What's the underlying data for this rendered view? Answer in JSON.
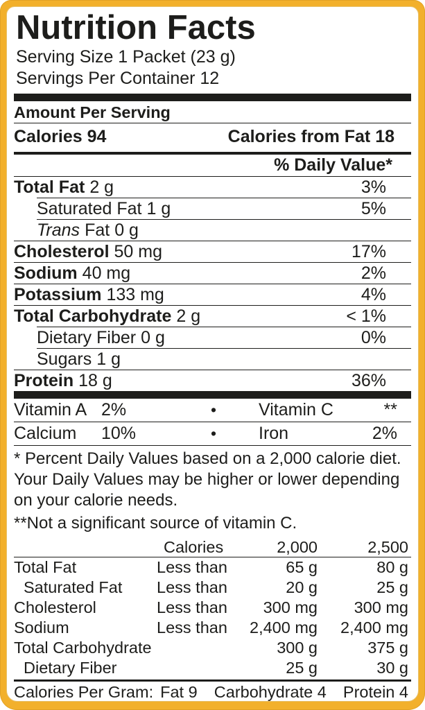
{
  "colors": {
    "frame": "#F2B02C",
    "background": "#FFFFFF",
    "text": "#1D1D1B"
  },
  "header": {
    "title": "Nutrition Facts",
    "serving_size": "Serving Size 1 Packet (23 g)",
    "servings_per_container": "Servings Per Container 12"
  },
  "amount_per_serving": {
    "heading": "Amount Per Serving",
    "calories": "Calories 94",
    "calories_from_fat": "Calories from Fat 18",
    "daily_value_header": "% Daily Value*"
  },
  "nutrients": [
    {
      "name": "Total Fat",
      "amount": "2 g",
      "dv": "3%"
    },
    {
      "name": "Saturated Fat",
      "amount": "1 g",
      "dv": "5%"
    },
    {
      "name_italic": "Trans",
      "name": "Fat",
      "amount": "0 g",
      "dv": ""
    },
    {
      "name": "Cholesterol",
      "amount": "50 mg",
      "dv": "17%"
    },
    {
      "name": "Sodium",
      "amount": "40 mg",
      "dv": "2%"
    },
    {
      "name": "Potassium",
      "amount": "133 mg",
      "dv": "4%"
    },
    {
      "name": "Total Carbohydrate",
      "amount": "2 g",
      "dv": "< 1%"
    },
    {
      "name": "Dietary Fiber",
      "amount": "0 g",
      "dv": "0%"
    },
    {
      "name": "Sugars",
      "amount": "1 g",
      "dv": ""
    },
    {
      "name": "Protein",
      "amount": "18 g",
      "dv": "36%"
    }
  ],
  "bullet_char": "•",
  "vitamins": [
    {
      "name": "Vitamin A",
      "value": "2%",
      "name2": "Vitamin C",
      "value2": "**"
    },
    {
      "name": "Calcium",
      "value": "10%",
      "name2": "Iron",
      "value2": "2%"
    }
  ],
  "footnotes": {
    "percent_daily_value": "* Percent Daily Values based on a 2,000 calorie diet. Your Daily Values may be higher or lower depending on your calorie needs.",
    "vitamin_c": "**Not a significant source of vitamin C."
  },
  "reference_table": {
    "header": {
      "calories": "Calories",
      "col_2000": "2,000",
      "col_2500": "2,500"
    },
    "rows": [
      {
        "label": "Total Fat",
        "qualifier": "Less than",
        "v2000": "65 g",
        "v2500": "80 g"
      },
      {
        "label": "Saturated Fat",
        "qualifier": "Less than",
        "v2000": "20 g",
        "v2500": "25 g"
      },
      {
        "label": "Cholesterol",
        "qualifier": "Less than",
        "v2000": "300 mg",
        "v2500": "300 mg"
      },
      {
        "label": "Sodium",
        "qualifier": "Less than",
        "v2000": "2,400 mg",
        "v2500": "2,400 mg"
      },
      {
        "label": "Total Carbohydrate",
        "qualifier": "",
        "v2000": "300 g",
        "v2500": "375 g"
      },
      {
        "label": "Dietary Fiber",
        "qualifier": "",
        "v2000": "25 g",
        "v2500": "30 g"
      }
    ]
  },
  "calories_per_gram": {
    "prefix": "Calories Per Gram:",
    "fat": "Fat 9",
    "carbohydrate": "Carbohydrate 4",
    "protein": "Protein 4"
  }
}
